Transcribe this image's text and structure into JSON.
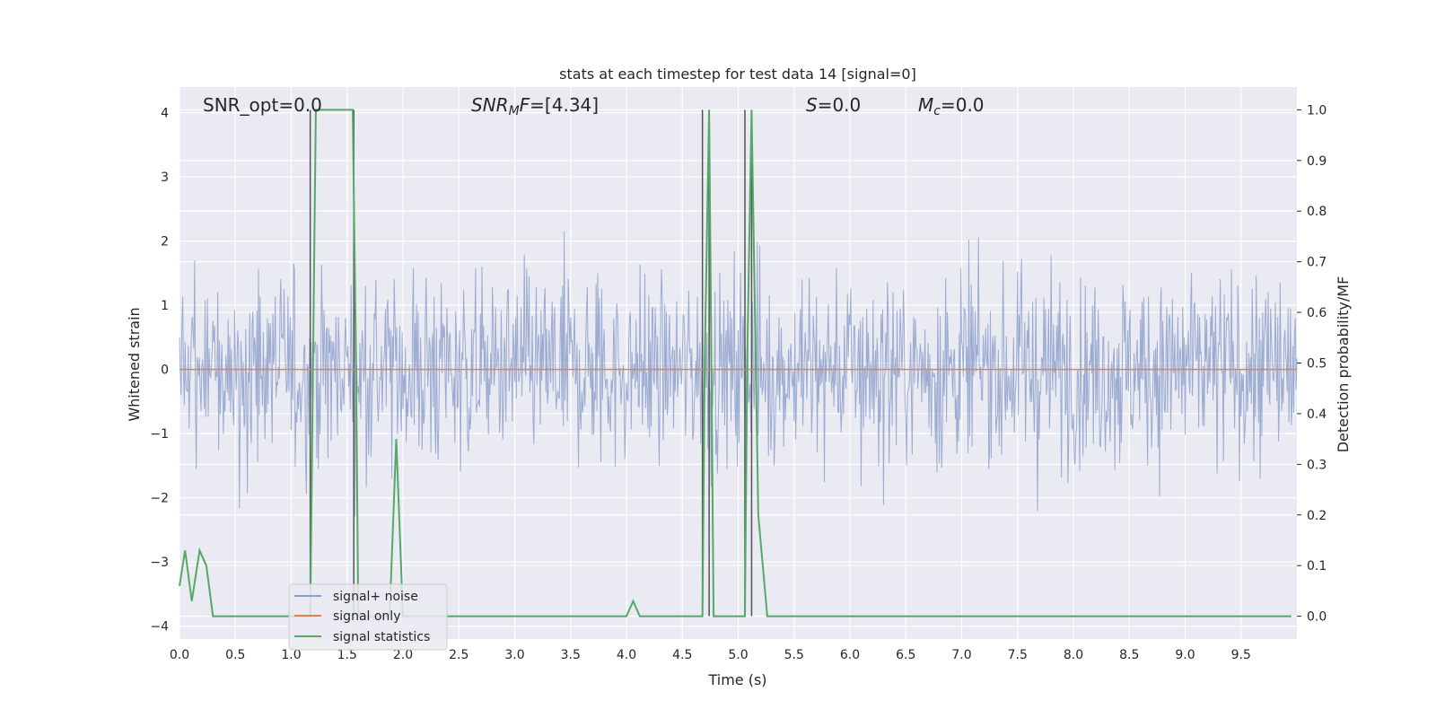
{
  "chart_data": {
    "type": "line",
    "title": "stats at each timestep for test data 14 [signal=0]",
    "xlabel": "Time (s)",
    "ylabel_left": "Whitened strain",
    "ylabel_right": "Detection probability/MF",
    "xlim": [
      0,
      10
    ],
    "ylim_left": [
      -4.2,
      4.4
    ],
    "ylim_right": [
      -0.045,
      1.045
    ],
    "x_ticks": [
      "0.0",
      "0.5",
      "1.0",
      "1.5",
      "2.0",
      "2.5",
      "3.0",
      "3.5",
      "4.0",
      "4.5",
      "5.0",
      "5.5",
      "6.0",
      "6.5",
      "7.0",
      "7.5",
      "8.0",
      "8.5",
      "9.0",
      "9.5"
    ],
    "y_left_ticks": [
      "4",
      "3",
      "2",
      "1",
      "0",
      "−1",
      "−2",
      "−3",
      "−4"
    ],
    "y_right_ticks": [
      "1.0",
      "0.9",
      "0.8",
      "0.7",
      "0.6",
      "0.5",
      "0.4",
      "0.3",
      "0.2",
      "0.1",
      "0.0"
    ],
    "grid": true,
    "background": "#eaeaf2",
    "annotations": {
      "snr_opt": "SNR_opt=0.0",
      "snr_mf_label": "SNR",
      "snr_mf_sub": "M",
      "snr_mf_f": "F",
      "snr_mf_value": "=[4.34]",
      "s_label": "S",
      "s_value": "=0.0",
      "mc_label": "M",
      "mc_sub": "c",
      "mc_value": "=0.0"
    },
    "noise_band": {
      "typical_abs": 1.6,
      "spike_max": 4.0,
      "spike_min": -3.7
    },
    "vlines": [
      1.17,
      1.56,
      4.68,
      4.74,
      5.06,
      5.12
    ],
    "series": [
      {
        "name": "signal+ noise",
        "color": "#8da0cb",
        "axis": "left"
      },
      {
        "name": "signal only",
        "color": "#dd8452",
        "axis": "left",
        "x": [
          0,
          10
        ],
        "y": [
          0,
          0
        ]
      },
      {
        "name": "signal statistics",
        "color": "#55a868",
        "axis": "right",
        "x": [
          0.0,
          0.05,
          0.11,
          0.18,
          0.24,
          0.3,
          1.17,
          1.22,
          1.55,
          1.58,
          1.6,
          1.8,
          1.88,
          1.94,
          2.0,
          4.0,
          4.06,
          4.12,
          4.68,
          4.7,
          4.74,
          4.78,
          5.06,
          5.08,
          5.12,
          5.18,
          5.26,
          9.95
        ],
        "y": [
          0.06,
          0.13,
          0.03,
          0.13,
          0.1,
          0.0,
          0.0,
          1.0,
          1.0,
          0.5,
          0.0,
          0.0,
          0.0,
          0.35,
          0.0,
          0.0,
          0.03,
          0.0,
          0.0,
          0.5,
          1.0,
          0.0,
          0.0,
          0.5,
          1.0,
          0.2,
          0.0,
          0.0
        ]
      }
    ]
  }
}
